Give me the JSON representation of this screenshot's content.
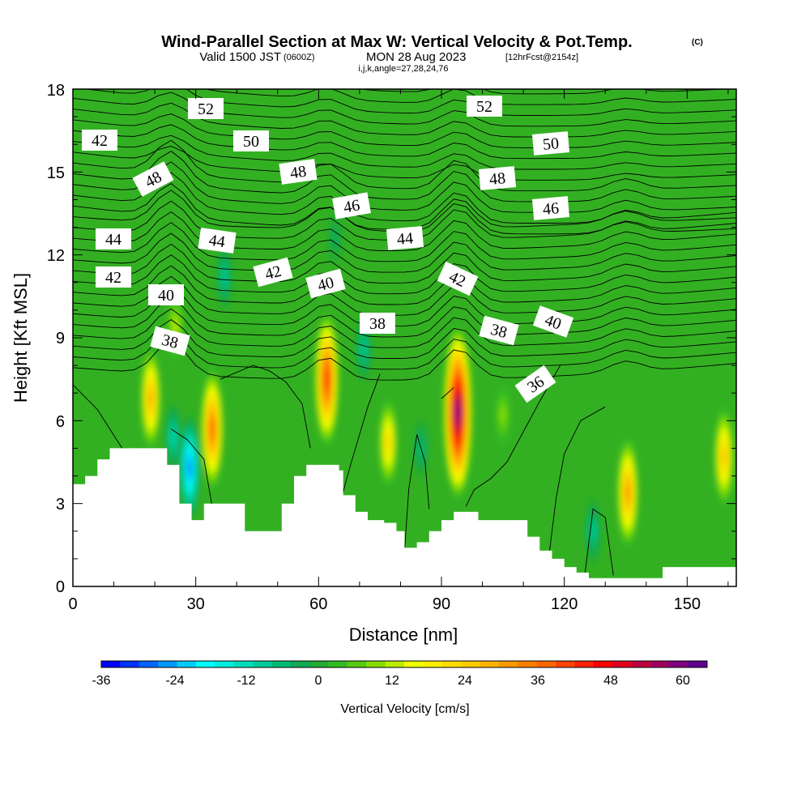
{
  "title": {
    "main": "Wind-Parallel Section at Max W: Vertical Velocity & Pot.Temp.",
    "copyright": "(C)",
    "valid_prefix": "Valid 1500 JST",
    "valid_utc": "(0600Z)",
    "valid_date": "MON 28 Aug 2023",
    "forecast": "[12hrFcst@2154z]",
    "indices": "i,j,k,angle=27,28,24,76"
  },
  "chart_data": {
    "type": "heatmap",
    "xlabel": "Distance [nm]",
    "ylabel": "Height [Kft MSL]",
    "xlim": [
      0,
      162
    ],
    "ylim": [
      0,
      18
    ],
    "xticks": [
      0,
      30,
      60,
      90,
      120,
      150
    ],
    "yticks": [
      0,
      3,
      6,
      9,
      12,
      15,
      18
    ],
    "colorbar": {
      "label": "Vertical Velocity [cm/s]",
      "ticks": [
        -36,
        -24,
        -12,
        0,
        12,
        24,
        36,
        48,
        60
      ],
      "levels": [
        -36,
        -33,
        -30,
        -27,
        -24,
        -21,
        -18,
        -15,
        -12,
        -9,
        -6,
        -3,
        0,
        3,
        6,
        9,
        12,
        15,
        18,
        21,
        24,
        27,
        30,
        33,
        36,
        39,
        42,
        45,
        48,
        51,
        54,
        57,
        60,
        63
      ],
      "colors": [
        "#0000ff",
        "#0033ff",
        "#0066ff",
        "#0099ff",
        "#00ccff",
        "#00ffff",
        "#00eedd",
        "#00ddbb",
        "#00cc99",
        "#00bb77",
        "#11aa55",
        "#22aa33",
        "#33bb22",
        "#55cc11",
        "#88dd00",
        "#bbee00",
        "#eeff00",
        "#ffee00",
        "#ffdd00",
        "#ffcc00",
        "#ffb300",
        "#ff9900",
        "#ff8000",
        "#ff6600",
        "#ff4400",
        "#ff2200",
        "#ff0000",
        "#e00020",
        "#c00040",
        "#a00060",
        "#800080",
        "#600090"
      ]
    },
    "vertical_velocity_cores": [
      {
        "x": 19,
        "y": 6.8,
        "w": 30
      },
      {
        "x": 25,
        "y": 9.4,
        "w": 14
      },
      {
        "x": 24.5,
        "y": 5.4,
        "w": -15
      },
      {
        "x": 28.5,
        "y": 4.3,
        "w": -32
      },
      {
        "x": 34,
        "y": 5.7,
        "w": 39
      },
      {
        "x": 37,
        "y": 11.2,
        "w": -14
      },
      {
        "x": 62,
        "y": 7.5,
        "w": 45
      },
      {
        "x": 64,
        "y": 12.6,
        "w": -8
      },
      {
        "x": 71,
        "y": 8.6,
        "w": -14
      },
      {
        "x": 77,
        "y": 5.2,
        "w": 24
      },
      {
        "x": 85,
        "y": 5.0,
        "w": -11
      },
      {
        "x": 94,
        "y": 6.3,
        "w": 63
      },
      {
        "x": 105,
        "y": 6.2,
        "w": 11
      },
      {
        "x": 127,
        "y": 2.0,
        "w": -14
      },
      {
        "x": 135.5,
        "y": 3.4,
        "w": 34
      },
      {
        "x": 159,
        "y": 4.7,
        "w": 29
      }
    ],
    "pot_temp_contours": {
      "levels": [
        36,
        38,
        40,
        42,
        44,
        46,
        48,
        50,
        52
      ],
      "labels": [
        "38",
        "40",
        "42",
        "44",
        "46",
        "48",
        "50",
        "52",
        "36"
      ]
    },
    "terrain_height_kft": [
      {
        "x": 0,
        "h": 3.7
      },
      {
        "x": 3,
        "h": 4.0
      },
      {
        "x": 6,
        "h": 4.6
      },
      {
        "x": 9,
        "h": 5.0
      },
      {
        "x": 21,
        "h": 5.0
      },
      {
        "x": 23,
        "h": 4.4
      },
      {
        "x": 26,
        "h": 3.0
      },
      {
        "x": 29,
        "h": 2.4
      },
      {
        "x": 32,
        "h": 3.0
      },
      {
        "x": 39,
        "h": 3.0
      },
      {
        "x": 42,
        "h": 2.0
      },
      {
        "x": 48,
        "h": 2.0
      },
      {
        "x": 51,
        "h": 3.0
      },
      {
        "x": 54,
        "h": 4.0
      },
      {
        "x": 57,
        "h": 4.4
      },
      {
        "x": 60,
        "h": 4.4
      },
      {
        "x": 63,
        "h": 4.4
      },
      {
        "x": 65,
        "h": 4.2
      },
      {
        "x": 66,
        "h": 3.3
      },
      {
        "x": 69,
        "h": 2.7
      },
      {
        "x": 72,
        "h": 2.4
      },
      {
        "x": 76,
        "h": 2.3
      },
      {
        "x": 79,
        "h": 2.0
      },
      {
        "x": 81,
        "h": 1.4
      },
      {
        "x": 84,
        "h": 1.6
      },
      {
        "x": 87,
        "h": 2.0
      },
      {
        "x": 90,
        "h": 2.4
      },
      {
        "x": 93,
        "h": 2.7
      },
      {
        "x": 96,
        "h": 2.7
      },
      {
        "x": 99,
        "h": 2.4
      },
      {
        "x": 108,
        "h": 2.4
      },
      {
        "x": 111,
        "h": 1.8
      },
      {
        "x": 114,
        "h": 1.3
      },
      {
        "x": 117,
        "h": 1.0
      },
      {
        "x": 120,
        "h": 0.7
      },
      {
        "x": 123,
        "h": 0.5
      },
      {
        "x": 126,
        "h": 0.3
      },
      {
        "x": 141,
        "h": 0.3
      },
      {
        "x": 144,
        "h": 0.7
      },
      {
        "x": 162,
        "h": 0.7
      }
    ]
  }
}
